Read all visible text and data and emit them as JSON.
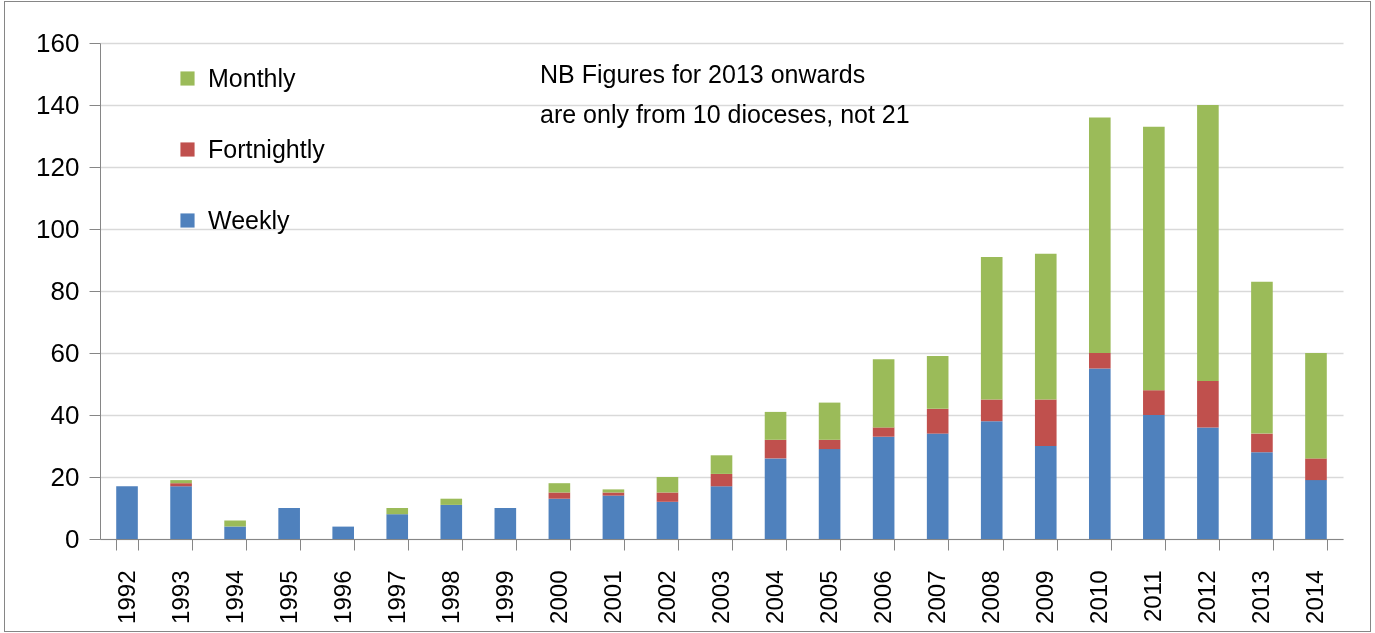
{
  "chart_data": {
    "type": "bar",
    "stacked": true,
    "categories": [
      "1992",
      "1993",
      "1994",
      "1995",
      "1996",
      "1997",
      "1998",
      "1999",
      "2000",
      "2001",
      "2002",
      "2003",
      "2004",
      "2005",
      "2006",
      "2007",
      "2008",
      "2009",
      "2010",
      "2011",
      "2012",
      "2013",
      "2014"
    ],
    "series": [
      {
        "name": "Weekly",
        "color": "#4f81bd",
        "values": [
          17,
          17,
          4,
          10,
          4,
          8,
          11,
          10,
          13,
          14,
          12,
          17,
          26,
          29,
          33,
          34,
          38,
          30,
          55,
          40,
          36,
          28,
          19
        ]
      },
      {
        "name": "Fortnightly",
        "color": "#c0504d",
        "values": [
          0,
          1,
          0,
          0,
          0,
          0,
          0,
          0,
          2,
          1,
          3,
          4,
          6,
          3,
          3,
          8,
          7,
          15,
          5,
          8,
          15,
          6,
          7
        ]
      },
      {
        "name": "Monthly",
        "color": "#9bbb59",
        "values": [
          0,
          1,
          2,
          0,
          0,
          2,
          2,
          0,
          3,
          1,
          5,
          6,
          9,
          12,
          22,
          17,
          46,
          47,
          76,
          85,
          89,
          49,
          34
        ]
      }
    ],
    "ylim": [
      0,
      160
    ],
    "yticks": [
      0,
      20,
      40,
      60,
      80,
      100,
      120,
      140,
      160
    ],
    "grid": "y",
    "legend": "top left",
    "annotations": [
      "NB Figures for 2013 onwards\nare only from 10 dioceses, not 21"
    ]
  }
}
